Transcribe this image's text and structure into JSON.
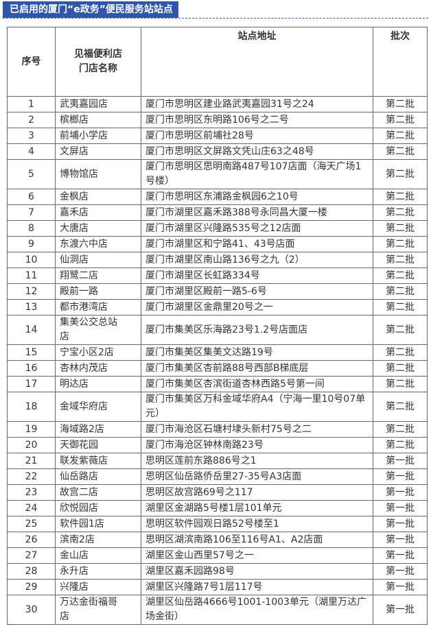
{
  "header": {
    "title": "已启用的厦门“e政务”便民服务站站点"
  },
  "table": {
    "columns": [
      "序号",
      "见福便利店门店名称",
      "站点地址",
      "批次"
    ],
    "rows": [
      [
        "1",
        "武夷嘉园店",
        "厦门市思明区建业路武夷嘉园31号之24",
        "第二批"
      ],
      [
        "2",
        "槟榔店",
        "厦门市思明区东明路106号之二号",
        "第二批"
      ],
      [
        "3",
        "前埔小学店",
        "厦门市思明区前埔社28号",
        "第二批"
      ],
      [
        "4",
        "文屏店",
        "厦门市思明区文屏路文凭山庄63之48号",
        "第二批"
      ],
      [
        "5",
        "博物馆店",
        "厦门市思明区思明南路487号107店面（海天广场1号楼）",
        "第二批"
      ],
      [
        "6",
        "金枫店",
        "厦门市思明区东浦路金枫园6之10号",
        "第二批"
      ],
      [
        "7",
        "嘉禾店",
        "厦门市湖里区嘉禾路388号永同昌大厦一楼",
        "第二批"
      ],
      [
        "8",
        "大唐店",
        "厦门市湖里区兴隆路535号之12店面",
        "第二批"
      ],
      [
        "9",
        "东渡六中店",
        "厦门市湖里区和宁路41、43号店面",
        "第二批"
      ],
      [
        "10",
        "仙洞店",
        "厦门市湖里区南山路136号之九（2）",
        "第二批"
      ],
      [
        "11",
        "翔鹭二店",
        "厦门市湖里区长虹路334号",
        "第二批"
      ],
      [
        "12",
        "殿前一路",
        "厦门市湖里区殿前一路5-6号",
        "第二批"
      ],
      [
        "13",
        "都市港湾店",
        "厦门市湖里区金鼎里20号之一",
        "第二批"
      ],
      [
        "14",
        "集美公交总站店",
        "厦门市集美区乐海路23号1.2号店面店",
        "第二批"
      ],
      [
        "15",
        "宁宝小区2店",
        "厦门市集美区集美文达路19号",
        "第二批"
      ],
      [
        "16",
        "杏林内茂店",
        "厦门市集美区杏前路88号西部B梯底层",
        "第二批"
      ],
      [
        "17",
        "明达店",
        "厦门市集美区杏滨街道杏林西路5号第一间",
        "第二批"
      ],
      [
        "18",
        "金域华府店",
        "厦门市集美区万科金域华府A4（宁海一里10号07单元）",
        "第二批"
      ],
      [
        "19",
        "海域路2店",
        "厦门市海沧区石塘村埭头新村75号之二",
        "第二批"
      ],
      [
        "20",
        "天御花园",
        "厦门市海沧区钟林南路23号",
        "第二批"
      ],
      [
        "21",
        "联发紫薇店",
        "思明区莲前东路886号之1",
        "第一批"
      ],
      [
        "22",
        "仙岳路店",
        "思明区仙岳路侨岳里27-35号A3店面",
        "第一批"
      ],
      [
        "23",
        "故宫二店",
        "思明区故宫路69号之117",
        "第一批"
      ],
      [
        "24",
        "欣悦园店",
        "湖里区金湖路5号楼1层101单元",
        "第一批"
      ],
      [
        "25",
        "软件园1店",
        "思明区软件园观日路52号楼至1",
        "第一批"
      ],
      [
        "26",
        "滨南2店",
        "思明区湖滨南路106至116号A1、A2店面",
        "第一批"
      ],
      [
        "27",
        "金山店",
        "湖里区金山西里57号之一",
        "第一批"
      ],
      [
        "28",
        "永升店",
        "湖里区嘉禾园路98号",
        "第一批"
      ],
      [
        "29",
        "兴隆店",
        "湖里区兴隆路7号1层117号",
        "第一批"
      ],
      [
        "30",
        "万达金街福哥店",
        "湖里区仙岳路4666号1001-1003单元（湖里万达广场金街）",
        "第一批"
      ]
    ]
  }
}
